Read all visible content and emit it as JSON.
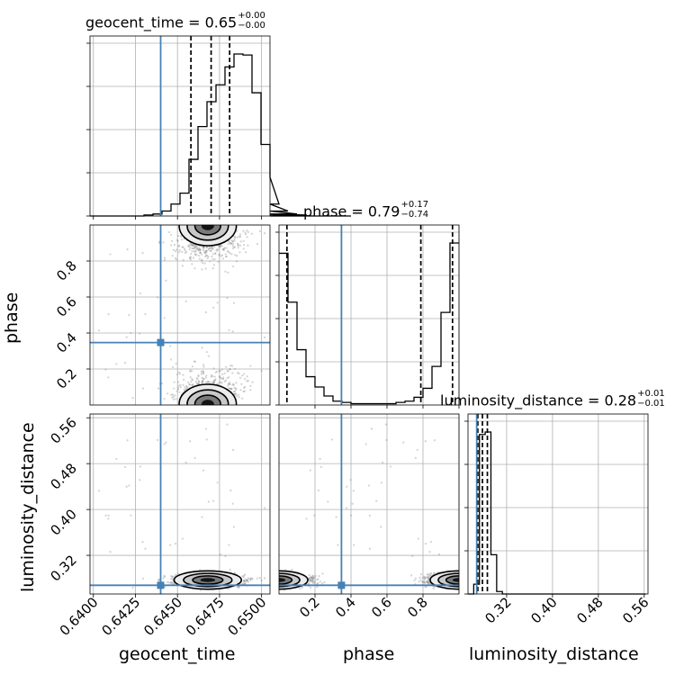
{
  "colors": {
    "truth": "#4682b4",
    "hist": "#000000",
    "grid": "#b0b0b0",
    "scatter": "#808080"
  },
  "chart_data": {
    "type": "corner",
    "parameters": [
      "geocent_time",
      "phase",
      "luminosity_distance"
    ],
    "titles": [
      {
        "param": "geocent_time",
        "median": "0.65",
        "plus": "+0.00",
        "minus": "−0.00"
      },
      {
        "param": "phase",
        "median": "0.79",
        "plus": "+0.17",
        "minus": "−0.74"
      },
      {
        "param": "luminosity_distance",
        "median": "0.28",
        "plus": "+0.01",
        "minus": "−0.01"
      }
    ],
    "axis_labels": {
      "x": [
        "geocent_time",
        "phase",
        "luminosity_distance"
      ],
      "y": [
        "phase",
        "luminosity_distance"
      ]
    },
    "ticks": {
      "geocent_time": [
        "0.6400",
        "0.6425",
        "0.6450",
        "0.6475",
        "0.6500"
      ],
      "phase": [
        "0.2",
        "0.4",
        "0.6",
        "0.8"
      ],
      "luminosity_distance": [
        "0.32",
        "0.40",
        "0.48",
        "0.56"
      ]
    },
    "ranges": {
      "geocent_time": [
        0.6398,
        0.6505
      ],
      "phase": [
        0.0,
        1.0
      ],
      "luminosity_distance": [
        0.2526,
        0.5666
      ]
    },
    "truths": {
      "geocent_time": 0.644,
      "phase": 0.347,
      "luminosity_distance": 0.2678
    },
    "quantiles": {
      "geocent_time": [
        0.6458,
        0.647,
        0.6481
      ],
      "phase": [
        0.044,
        0.788,
        0.964
      ],
      "luminosity_distance": [
        0.2697,
        0.2778,
        0.2864
      ]
    },
    "marginals": {
      "geocent_time": {
        "edges_start": 0.6398,
        "bin_width": 0.000535,
        "counts": [
          0,
          0,
          0,
          0,
          0,
          0,
          1,
          2,
          5,
          12,
          23,
          57,
          90,
          115,
          132,
          150,
          163,
          162,
          124,
          72,
          39,
          12,
          5,
          2,
          1,
          0,
          0,
          0,
          0,
          0
        ]
      },
      "phase": {
        "edges_start": 0.0,
        "bin_width": 0.05,
        "counts": [
          118,
          80,
          43,
          22,
          14,
          7,
          3,
          2,
          1,
          1,
          1,
          1,
          1,
          2,
          3,
          6,
          13,
          30,
          72,
          126
        ]
      },
      "luminosity_distance": {
        "edges_start": 0.2526,
        "bin_width": 0.01,
        "counts": [
          0,
          4,
          65,
          66,
          16,
          1,
          0,
          0,
          0,
          0,
          0,
          0,
          0,
          0,
          0,
          0,
          0,
          0,
          0,
          0,
          0,
          0,
          0,
          0,
          0,
          0,
          0,
          0,
          0,
          0,
          0
        ]
      }
    }
  }
}
